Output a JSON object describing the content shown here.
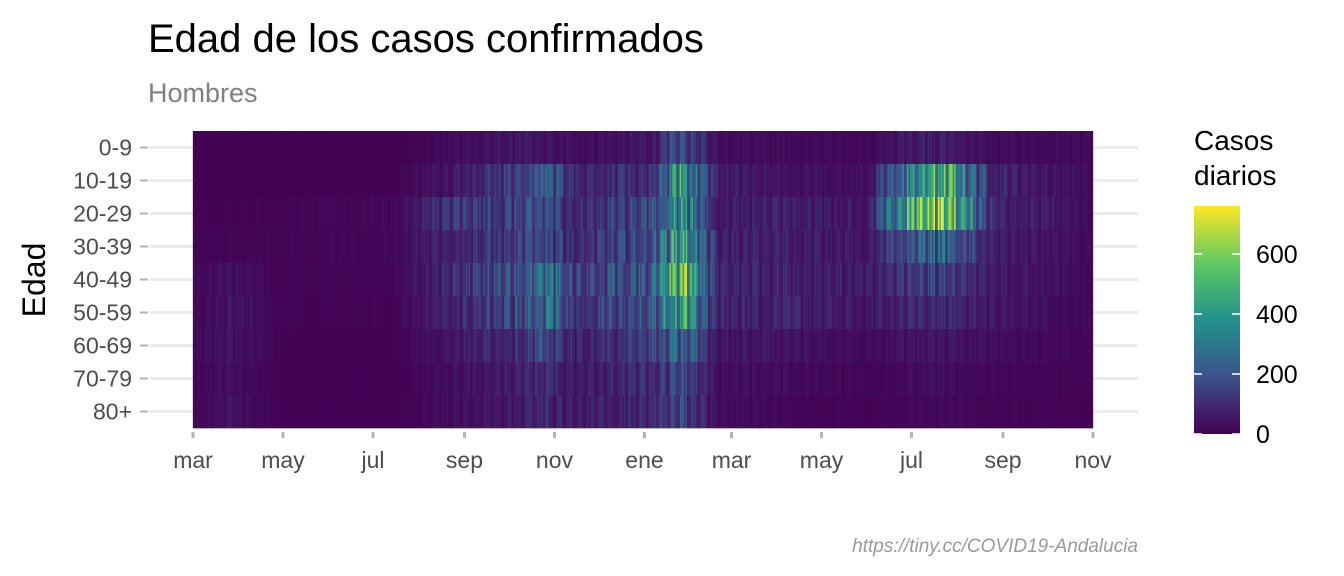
{
  "chart_data": {
    "type": "heatmap",
    "title": "Edad de los casos confirmados",
    "subtitle": "Hombres",
    "ylabel": "Edad",
    "xlabel": "",
    "caption": "https://tiny.cc/COVID19-Andalucia",
    "y_categories": [
      "0-9",
      "10-19",
      "20-29",
      "30-39",
      "40-49",
      "50-59",
      "60-69",
      "70-79",
      "80+"
    ],
    "x_tick_labels": [
      "mar",
      "may",
      "jul",
      "sep",
      "nov",
      "ene",
      "mar",
      "may",
      "jul",
      "sep",
      "nov"
    ],
    "x_tick_dates": [
      "2020-03-01",
      "2020-05-01",
      "2020-07-01",
      "2020-09-01",
      "2020-11-01",
      "2021-01-01",
      "2021-03-01",
      "2021-05-01",
      "2021-07-01",
      "2021-09-01",
      "2021-11-01"
    ],
    "date_range": [
      "2020-03-01",
      "2021-10-31"
    ],
    "legend": {
      "title": "Casos\ndiarios",
      "ticks": [
        0,
        200,
        400,
        600
      ],
      "range": [
        0,
        760
      ],
      "colorscale": "viridis",
      "colors": [
        "#440154",
        "#3b528b",
        "#21918c",
        "#5ec962",
        "#fde725"
      ],
      "position": "right"
    },
    "grid": true,
    "series": [
      {
        "name": "0-9",
        "points": [
          [
            "2020-03-01",
            2
          ],
          [
            "2020-07-15",
            4
          ],
          [
            "2020-08-20",
            30
          ],
          [
            "2020-10-10",
            60
          ],
          [
            "2020-11-15",
            35
          ],
          [
            "2021-01-05",
            60
          ],
          [
            "2021-01-25",
            210
          ],
          [
            "2021-02-20",
            40
          ],
          [
            "2021-04-01",
            30
          ],
          [
            "2021-06-01",
            20
          ],
          [
            "2021-07-10",
            90
          ],
          [
            "2021-07-25",
            75
          ],
          [
            "2021-08-25",
            30
          ],
          [
            "2021-10-31",
            25
          ]
        ]
      },
      {
        "name": "10-19",
        "points": [
          [
            "2020-03-01",
            2
          ],
          [
            "2020-07-15",
            8
          ],
          [
            "2020-08-20",
            60
          ],
          [
            "2020-10-10",
            190
          ],
          [
            "2020-10-25",
            280
          ],
          [
            "2020-11-15",
            120
          ],
          [
            "2021-01-05",
            120
          ],
          [
            "2021-01-25",
            470
          ],
          [
            "2021-02-20",
            80
          ],
          [
            "2021-04-01",
            50
          ],
          [
            "2021-06-01",
            40
          ],
          [
            "2021-07-10",
            510
          ],
          [
            "2021-07-25",
            540
          ],
          [
            "2021-08-25",
            100
          ],
          [
            "2021-10-31",
            30
          ]
        ]
      },
      {
        "name": "20-29",
        "points": [
          [
            "2020-03-01",
            8
          ],
          [
            "2020-07-15",
            20
          ],
          [
            "2020-08-20",
            140
          ],
          [
            "2020-10-10",
            180
          ],
          [
            "2020-10-25",
            220
          ],
          [
            "2020-11-15",
            110
          ],
          [
            "2021-01-05",
            220
          ],
          [
            "2021-01-25",
            470
          ],
          [
            "2021-02-20",
            70
          ],
          [
            "2021-04-01",
            90
          ],
          [
            "2021-06-01",
            60
          ],
          [
            "2021-07-10",
            720
          ],
          [
            "2021-07-20",
            750
          ],
          [
            "2021-08-25",
            110
          ],
          [
            "2021-10-31",
            30
          ]
        ]
      },
      {
        "name": "30-39",
        "points": [
          [
            "2020-03-01",
            12
          ],
          [
            "2020-07-15",
            18
          ],
          [
            "2020-08-20",
            110
          ],
          [
            "2020-10-10",
            160
          ],
          [
            "2020-10-25",
            230
          ],
          [
            "2020-11-15",
            110
          ],
          [
            "2021-01-05",
            220
          ],
          [
            "2021-01-25",
            540
          ],
          [
            "2021-02-20",
            80
          ],
          [
            "2021-04-01",
            90
          ],
          [
            "2021-06-01",
            60
          ],
          [
            "2021-07-10",
            300
          ],
          [
            "2021-07-25",
            280
          ],
          [
            "2021-08-25",
            80
          ],
          [
            "2021-10-31",
            30
          ]
        ]
      },
      {
        "name": "40-49",
        "points": [
          [
            "2020-03-01",
            20
          ],
          [
            "2020-03-25",
            45
          ],
          [
            "2020-05-01",
            10
          ],
          [
            "2020-07-15",
            15
          ],
          [
            "2020-08-20",
            110
          ],
          [
            "2020-10-10",
            230
          ],
          [
            "2020-10-25",
            390
          ],
          [
            "2020-11-15",
            150
          ],
          [
            "2021-01-05",
            250
          ],
          [
            "2021-01-25",
            640
          ],
          [
            "2021-02-20",
            100
          ],
          [
            "2021-04-01",
            100
          ],
          [
            "2021-06-01",
            70
          ],
          [
            "2021-07-10",
            190
          ],
          [
            "2021-07-25",
            170
          ],
          [
            "2021-08-25",
            70
          ],
          [
            "2021-10-31",
            25
          ]
        ]
      },
      {
        "name": "50-59",
        "points": [
          [
            "2020-03-01",
            25
          ],
          [
            "2020-03-25",
            60
          ],
          [
            "2020-05-01",
            10
          ],
          [
            "2020-07-15",
            12
          ],
          [
            "2020-08-20",
            90
          ],
          [
            "2020-10-10",
            210
          ],
          [
            "2020-10-25",
            330
          ],
          [
            "2020-11-15",
            140
          ],
          [
            "2021-01-05",
            230
          ],
          [
            "2021-01-25",
            520
          ],
          [
            "2021-02-20",
            90
          ],
          [
            "2021-04-01",
            100
          ],
          [
            "2021-06-01",
            60
          ],
          [
            "2021-07-10",
            120
          ],
          [
            "2021-07-25",
            110
          ],
          [
            "2021-08-25",
            60
          ],
          [
            "2021-10-31",
            20
          ]
        ]
      },
      {
        "name": "60-69",
        "points": [
          [
            "2020-03-01",
            20
          ],
          [
            "2020-03-25",
            55
          ],
          [
            "2020-05-01",
            8
          ],
          [
            "2020-07-15",
            8
          ],
          [
            "2020-08-20",
            60
          ],
          [
            "2020-10-10",
            140
          ],
          [
            "2020-10-25",
            200
          ],
          [
            "2020-11-15",
            90
          ],
          [
            "2021-01-05",
            170
          ],
          [
            "2021-01-25",
            300
          ],
          [
            "2021-02-20",
            60
          ],
          [
            "2021-04-01",
            55
          ],
          [
            "2021-06-01",
            30
          ],
          [
            "2021-07-10",
            60
          ],
          [
            "2021-07-25",
            55
          ],
          [
            "2021-08-25",
            35
          ],
          [
            "2021-10-31",
            15
          ]
        ]
      },
      {
        "name": "70-79",
        "points": [
          [
            "2020-03-01",
            15
          ],
          [
            "2020-03-25",
            45
          ],
          [
            "2020-05-01",
            6
          ],
          [
            "2020-07-15",
            5
          ],
          [
            "2020-08-20",
            40
          ],
          [
            "2020-10-10",
            90
          ],
          [
            "2020-10-25",
            120
          ],
          [
            "2020-11-15",
            70
          ],
          [
            "2021-01-05",
            120
          ],
          [
            "2021-01-25",
            200
          ],
          [
            "2021-02-20",
            40
          ],
          [
            "2021-04-01",
            30
          ],
          [
            "2021-06-01",
            15
          ],
          [
            "2021-07-10",
            35
          ],
          [
            "2021-07-25",
            35
          ],
          [
            "2021-08-25",
            20
          ],
          [
            "2021-10-31",
            10
          ]
        ]
      },
      {
        "name": "80+",
        "points": [
          [
            "2020-03-01",
            15
          ],
          [
            "2020-03-25",
            50
          ],
          [
            "2020-05-01",
            6
          ],
          [
            "2020-07-15",
            5
          ],
          [
            "2020-08-20",
            35
          ],
          [
            "2020-10-10",
            80
          ],
          [
            "2020-10-25",
            110
          ],
          [
            "2020-11-15",
            70
          ],
          [
            "2021-01-05",
            110
          ],
          [
            "2021-01-25",
            190
          ],
          [
            "2021-02-20",
            35
          ],
          [
            "2021-04-01",
            20
          ],
          [
            "2021-06-01",
            10
          ],
          [
            "2021-07-10",
            25
          ],
          [
            "2021-07-25",
            25
          ],
          [
            "2021-08-25",
            15
          ],
          [
            "2021-10-31",
            8
          ]
        ]
      }
    ]
  }
}
